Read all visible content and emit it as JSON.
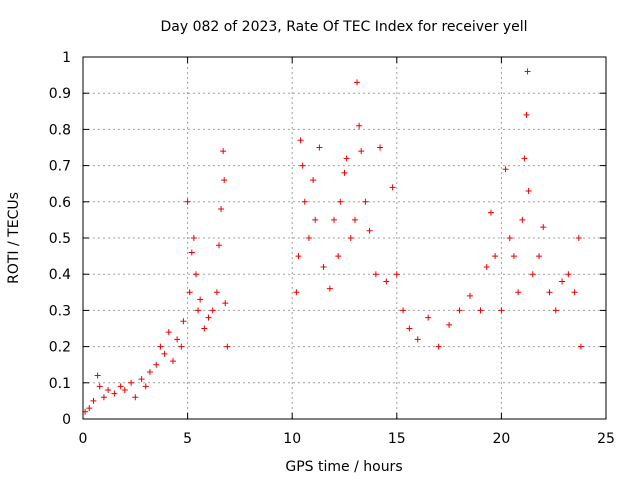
{
  "chart_data": {
    "type": "scatter",
    "title": "Day 082 of 2023, Rate Of TEC Index for receiver yell",
    "xlabel": "GPS time / hours",
    "ylabel": "ROTI / TECUs",
    "xlim": [
      0,
      25
    ],
    "ylim": [
      0,
      1
    ],
    "xticks": [
      0,
      5,
      10,
      15,
      20,
      25
    ],
    "yticks": [
      0,
      0.1,
      0.2,
      0.3,
      0.4,
      0.5,
      0.6,
      0.7,
      0.8,
      0.9,
      1
    ],
    "xtick_labels": [
      "0",
      "5",
      "10",
      "15",
      "20",
      "25"
    ],
    "ytick_labels": [
      "0",
      "0.1",
      "0.2",
      "0.3",
      "0.4",
      "0.5",
      "0.6",
      "0.7",
      "0.8",
      "0.9",
      "1"
    ],
    "grid": true,
    "marker": "+",
    "color": "#ee0000",
    "series": [
      {
        "name": "",
        "points": [
          [
            0.1,
            0.02
          ],
          [
            0.3,
            0.03
          ],
          [
            0.5,
            0.05
          ],
          [
            0.7,
            0.12
          ],
          [
            0.8,
            0.09
          ],
          [
            1.0,
            0.06
          ],
          [
            1.2,
            0.08
          ],
          [
            1.5,
            0.07
          ],
          [
            1.8,
            0.09
          ],
          [
            2.0,
            0.08
          ],
          [
            2.3,
            0.1
          ],
          [
            2.5,
            0.06
          ],
          [
            2.8,
            0.11
          ],
          [
            3.0,
            0.09
          ],
          [
            3.2,
            0.13
          ],
          [
            3.5,
            0.15
          ],
          [
            3.7,
            0.2
          ],
          [
            3.9,
            0.18
          ],
          [
            4.1,
            0.24
          ],
          [
            4.3,
            0.16
          ],
          [
            4.5,
            0.22
          ],
          [
            4.7,
            0.2
          ],
          [
            4.8,
            0.27
          ],
          [
            5.0,
            0.6
          ],
          [
            5.1,
            0.35
          ],
          [
            5.2,
            0.46
          ],
          [
            5.3,
            0.5
          ],
          [
            5.4,
            0.4
          ],
          [
            5.5,
            0.3
          ],
          [
            5.6,
            0.33
          ],
          [
            5.8,
            0.25
          ],
          [
            6.0,
            0.28
          ],
          [
            6.2,
            0.3
          ],
          [
            6.4,
            0.35
          ],
          [
            6.5,
            0.48
          ],
          [
            6.6,
            0.58
          ],
          [
            6.7,
            0.74
          ],
          [
            6.75,
            0.66
          ],
          [
            6.8,
            0.32
          ],
          [
            6.9,
            0.2
          ],
          [
            10.2,
            0.35
          ],
          [
            10.3,
            0.45
          ],
          [
            10.4,
            0.77
          ],
          [
            10.5,
            0.7
          ],
          [
            10.6,
            0.6
          ],
          [
            10.8,
            0.5
          ],
          [
            11.0,
            0.66
          ],
          [
            11.1,
            0.55
          ],
          [
            11.3,
            0.75
          ],
          [
            11.5,
            0.42
          ],
          [
            11.8,
            0.36
          ],
          [
            12.0,
            0.55
          ],
          [
            12.2,
            0.45
          ],
          [
            12.3,
            0.6
          ],
          [
            12.5,
            0.68
          ],
          [
            12.6,
            0.72
          ],
          [
            12.8,
            0.5
          ],
          [
            13.0,
            0.55
          ],
          [
            13.1,
            0.93
          ],
          [
            13.2,
            0.81
          ],
          [
            13.3,
            0.74
          ],
          [
            13.5,
            0.6
          ],
          [
            13.7,
            0.52
          ],
          [
            14.0,
            0.4
          ],
          [
            14.2,
            0.75
          ],
          [
            14.5,
            0.38
          ],
          [
            14.8,
            0.64
          ],
          [
            15.0,
            0.4
          ],
          [
            15.3,
            0.3
          ],
          [
            15.6,
            0.25
          ],
          [
            16.0,
            0.22
          ],
          [
            16.5,
            0.28
          ],
          [
            17.0,
            0.2
          ],
          [
            17.5,
            0.26
          ],
          [
            18.0,
            0.3
          ],
          [
            18.5,
            0.34
          ],
          [
            19.0,
            0.3
          ],
          [
            19.3,
            0.42
          ],
          [
            19.5,
            0.57
          ],
          [
            19.7,
            0.45
          ],
          [
            20.0,
            0.3
          ],
          [
            20.2,
            0.69
          ],
          [
            20.4,
            0.5
          ],
          [
            20.6,
            0.45
          ],
          [
            20.8,
            0.35
          ],
          [
            21.0,
            0.55
          ],
          [
            21.1,
            0.72
          ],
          [
            21.2,
            0.84
          ],
          [
            21.25,
            0.96
          ],
          [
            21.3,
            0.63
          ],
          [
            21.5,
            0.4
          ],
          [
            21.8,
            0.45
          ],
          [
            22.0,
            0.53
          ],
          [
            22.3,
            0.35
          ],
          [
            22.6,
            0.3
          ],
          [
            22.9,
            0.38
          ],
          [
            23.2,
            0.4
          ],
          [
            23.5,
            0.35
          ],
          [
            23.7,
            0.5
          ],
          [
            23.8,
            0.2
          ]
        ]
      }
    ]
  }
}
